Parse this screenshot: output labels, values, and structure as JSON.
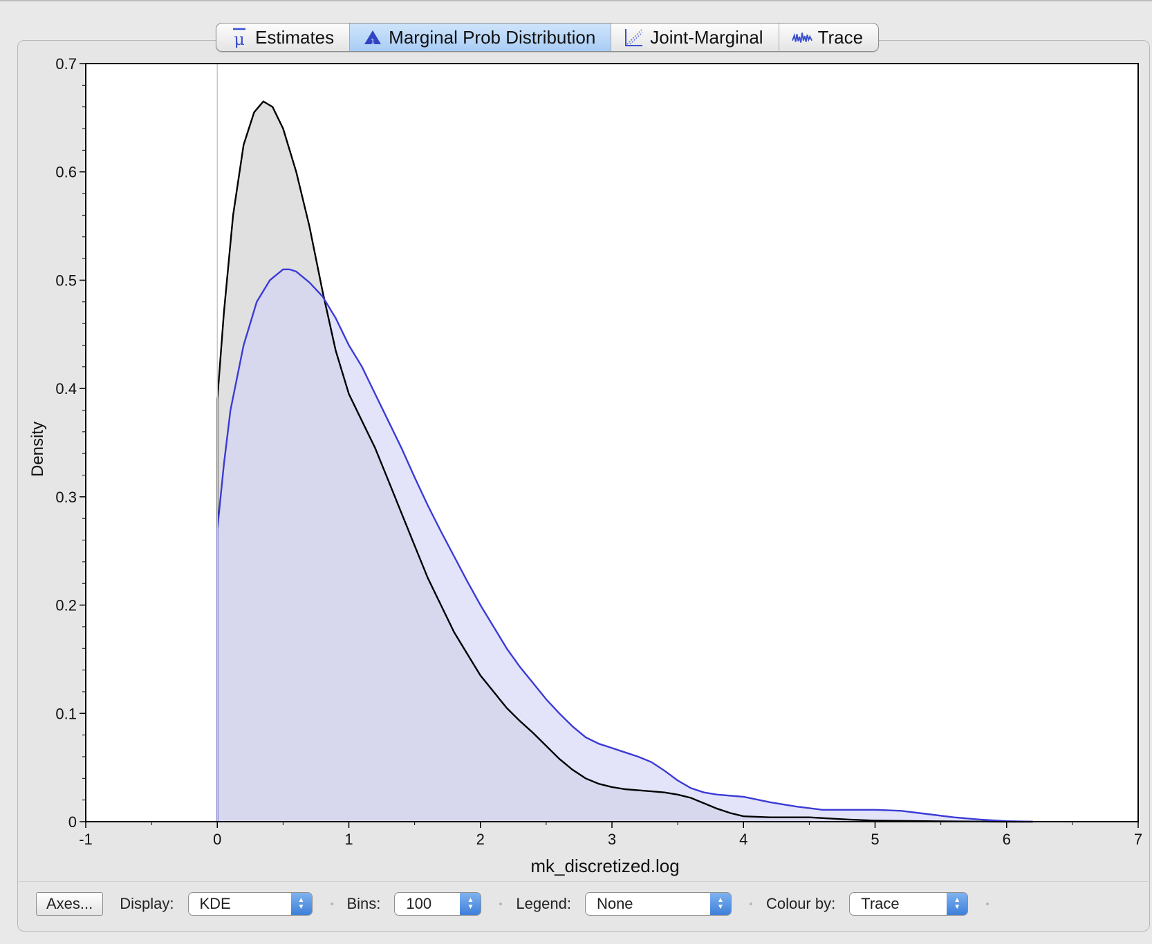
{
  "tabs": [
    {
      "label": "Estimates",
      "icon": "mu-icon",
      "active": false
    },
    {
      "label": "Marginal Prob Distribution",
      "icon": "distribution-icon",
      "active": true
    },
    {
      "label": "Joint-Marginal",
      "icon": "scatter-icon",
      "active": false
    },
    {
      "label": "Trace",
      "icon": "trace-icon",
      "active": false
    }
  ],
  "controls": {
    "axes_button": "Axes...",
    "display_label": "Display:",
    "display_value": "KDE",
    "bins_label": "Bins:",
    "bins_value": "100",
    "legend_label": "Legend:",
    "legend_value": "None",
    "colour_label": "Colour by:",
    "colour_value": "Trace"
  },
  "colors": {
    "series_black": "#000000",
    "series_blue": "#3b3bd6",
    "fill_black": "#cccccc",
    "fill_blue": "#d0d0f5",
    "selected_tab": "#a9cdf5"
  },
  "chart_data": {
    "type": "area",
    "xlabel": "mk_discretized.log",
    "ylabel": "Density",
    "xlim": [
      -1,
      7
    ],
    "ylim": [
      0,
      0.7
    ],
    "xticks": [
      "-1",
      "0",
      "1",
      "2",
      "3",
      "4",
      "5",
      "6",
      "7"
    ],
    "yticks": [
      "0",
      "0.1",
      "0.2",
      "0.3",
      "0.4",
      "0.5",
      "0.6",
      "0.7"
    ],
    "legend": "None",
    "series": [
      {
        "color": "#000000",
        "fill": "#cccccc",
        "points": [
          [
            0,
            0
          ],
          [
            0,
            0.39
          ],
          [
            0.05,
            0.47
          ],
          [
            0.12,
            0.56
          ],
          [
            0.2,
            0.625
          ],
          [
            0.28,
            0.655
          ],
          [
            0.35,
            0.665
          ],
          [
            0.42,
            0.66
          ],
          [
            0.5,
            0.64
          ],
          [
            0.6,
            0.6
          ],
          [
            0.7,
            0.55
          ],
          [
            0.8,
            0.49
          ],
          [
            0.9,
            0.435
          ],
          [
            1.0,
            0.395
          ],
          [
            1.1,
            0.37
          ],
          [
            1.2,
            0.345
          ],
          [
            1.3,
            0.315
          ],
          [
            1.4,
            0.285
          ],
          [
            1.5,
            0.255
          ],
          [
            1.6,
            0.225
          ],
          [
            1.7,
            0.2
          ],
          [
            1.8,
            0.175
          ],
          [
            1.9,
            0.155
          ],
          [
            2.0,
            0.135
          ],
          [
            2.1,
            0.12
          ],
          [
            2.2,
            0.105
          ],
          [
            2.3,
            0.093
          ],
          [
            2.4,
            0.082
          ],
          [
            2.5,
            0.07
          ],
          [
            2.6,
            0.058
          ],
          [
            2.7,
            0.048
          ],
          [
            2.8,
            0.04
          ],
          [
            2.9,
            0.035
          ],
          [
            3.0,
            0.032
          ],
          [
            3.1,
            0.03
          ],
          [
            3.2,
            0.029
          ],
          [
            3.3,
            0.028
          ],
          [
            3.4,
            0.027
          ],
          [
            3.5,
            0.025
          ],
          [
            3.6,
            0.022
          ],
          [
            3.7,
            0.017
          ],
          [
            3.8,
            0.012
          ],
          [
            3.9,
            0.008
          ],
          [
            4.0,
            0.005
          ],
          [
            4.2,
            0.004
          ],
          [
            4.5,
            0.004
          ],
          [
            4.8,
            0.002
          ],
          [
            5.0,
            0.001
          ],
          [
            5.5,
            0.0003
          ],
          [
            6.0,
            0
          ],
          [
            6.2,
            0
          ]
        ]
      },
      {
        "color": "#3b3bd6",
        "fill": "#d0d0f5",
        "points": [
          [
            0,
            0
          ],
          [
            0,
            0.27
          ],
          [
            0.05,
            0.33
          ],
          [
            0.1,
            0.38
          ],
          [
            0.2,
            0.44
          ],
          [
            0.3,
            0.48
          ],
          [
            0.4,
            0.5
          ],
          [
            0.5,
            0.51
          ],
          [
            0.55,
            0.51
          ],
          [
            0.6,
            0.508
          ],
          [
            0.7,
            0.498
          ],
          [
            0.8,
            0.485
          ],
          [
            0.9,
            0.465
          ],
          [
            1.0,
            0.44
          ],
          [
            1.1,
            0.42
          ],
          [
            1.2,
            0.395
          ],
          [
            1.3,
            0.37
          ],
          [
            1.4,
            0.345
          ],
          [
            1.5,
            0.318
          ],
          [
            1.6,
            0.292
          ],
          [
            1.7,
            0.268
          ],
          [
            1.8,
            0.245
          ],
          [
            1.9,
            0.222
          ],
          [
            2.0,
            0.2
          ],
          [
            2.1,
            0.18
          ],
          [
            2.2,
            0.16
          ],
          [
            2.3,
            0.143
          ],
          [
            2.4,
            0.128
          ],
          [
            2.5,
            0.113
          ],
          [
            2.6,
            0.1
          ],
          [
            2.7,
            0.088
          ],
          [
            2.8,
            0.078
          ],
          [
            2.9,
            0.072
          ],
          [
            3.0,
            0.068
          ],
          [
            3.1,
            0.064
          ],
          [
            3.2,
            0.06
          ],
          [
            3.3,
            0.055
          ],
          [
            3.4,
            0.047
          ],
          [
            3.5,
            0.038
          ],
          [
            3.6,
            0.031
          ],
          [
            3.7,
            0.027
          ],
          [
            3.8,
            0.025
          ],
          [
            4.0,
            0.023
          ],
          [
            4.2,
            0.018
          ],
          [
            4.4,
            0.014
          ],
          [
            4.6,
            0.011
          ],
          [
            4.8,
            0.011
          ],
          [
            5.0,
            0.011
          ],
          [
            5.2,
            0.01
          ],
          [
            5.4,
            0.007
          ],
          [
            5.6,
            0.004
          ],
          [
            5.8,
            0.002
          ],
          [
            6.0,
            0.0005
          ],
          [
            6.2,
            0
          ]
        ]
      }
    ]
  }
}
